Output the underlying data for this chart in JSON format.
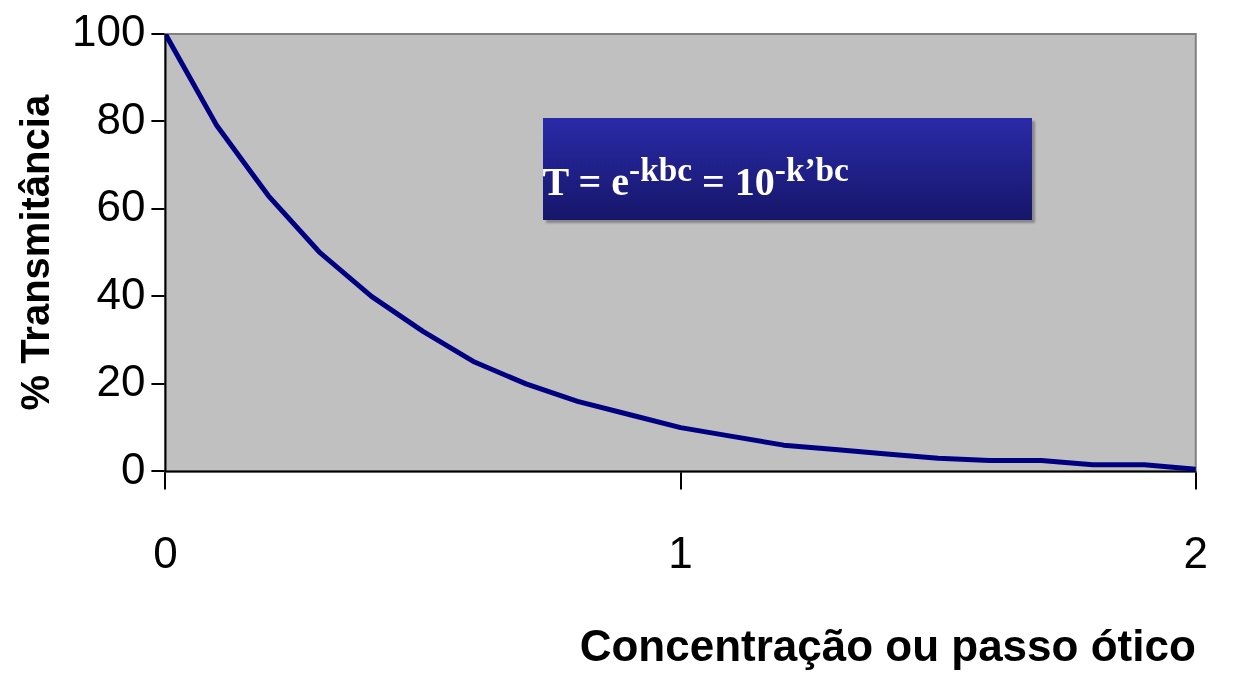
{
  "chart_data": {
    "type": "line",
    "xlabel": "Concentração ou passo ótico",
    "ylabel": "% Transmitância",
    "x": [
      0,
      0.1,
      0.2,
      0.3,
      0.4,
      0.5,
      0.6,
      0.7,
      0.8,
      0.9,
      1.0,
      1.1,
      1.2,
      1.3,
      1.4,
      1.5,
      1.6,
      1.7,
      1.8,
      1.9,
      2.0
    ],
    "series": [
      {
        "color": "#000080",
        "values": [
          100,
          79,
          63,
          50,
          40,
          32,
          25,
          20,
          16,
          13,
          10,
          8,
          6,
          5,
          4,
          3,
          2.5,
          2.5,
          1.5,
          1.5,
          0.5
        ]
      }
    ],
    "xlim": [
      0,
      2
    ],
    "xticks": [
      0,
      1,
      2
    ],
    "ylim": [
      0,
      100
    ],
    "yticks": [
      0,
      20,
      40,
      60,
      80,
      100
    ],
    "grid": false,
    "legend": false,
    "marker": "none",
    "line_style": "solid",
    "annotations": [
      "T = e$^{-kbc}$ = 10$^{-k’bc}$"
    ]
  }
}
